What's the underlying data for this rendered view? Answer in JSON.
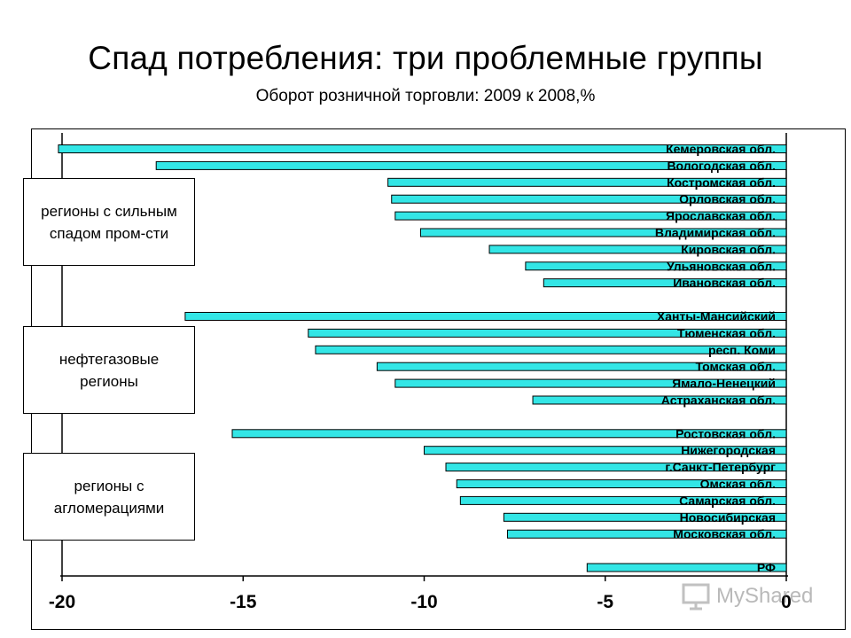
{
  "title": "Спад потребления: три проблемные группы",
  "subtitle": "Оборот розничной торговли: 2009 к 2008,%",
  "groups": [
    {
      "label_line1": "регионы с сильным",
      "label_line2": "спадом пром-сти"
    },
    {
      "label_line1": "нефтегазовые",
      "label_line2": "регионы"
    },
    {
      "label_line1": "регионы с",
      "label_line2": "агломерациями"
    }
  ],
  "watermark": "MyShared",
  "colors": {
    "bar_fill": "#33e6e6",
    "bar_stroke": "#000000",
    "axis": "#000000"
  },
  "chart_data": {
    "type": "bar",
    "orientation": "horizontal",
    "title": "Спад потребления: три проблемные группы",
    "subtitle": "Оборот розничной торговли: 2009 к 2008,%",
    "xlabel": "",
    "ylabel": "",
    "xlim": [
      -20,
      0
    ],
    "xticks": [
      -20,
      -15,
      -10,
      -5,
      0
    ],
    "xtick_labels": [
      "-20",
      "-15",
      "-10",
      "-5",
      "0"
    ],
    "categories": [
      "Кемеровская обл.",
      "Вологодская обл.",
      "Костромская обл.",
      "Орловская обл.",
      "Ярославская обл.",
      "Владимирская обл.",
      "Кировская обл.",
      "Ульяновская обл.",
      "Ивановская обл.",
      "",
      "Ханты-Мансийский",
      "Тюменская обл.",
      "респ. Коми",
      "Томская обл.",
      "Ямало-Ненецкий",
      "Астраханская обл.",
      "",
      "Ростовская обл.",
      "Нижегородская",
      "г.Санкт-Петербург",
      "Омская обл.",
      "Самарская обл.",
      "Новосибирская",
      "Московская обл.",
      "",
      "РФ"
    ],
    "values": [
      -20.1,
      -17.4,
      -11.0,
      -10.9,
      -10.8,
      -10.1,
      -8.2,
      -7.2,
      -6.7,
      null,
      -16.6,
      -13.2,
      -13.0,
      -11.3,
      -10.8,
      -7.0,
      null,
      -15.3,
      -10.0,
      -9.4,
      -9.1,
      -9.0,
      -7.8,
      -7.7,
      null,
      -5.5
    ]
  }
}
